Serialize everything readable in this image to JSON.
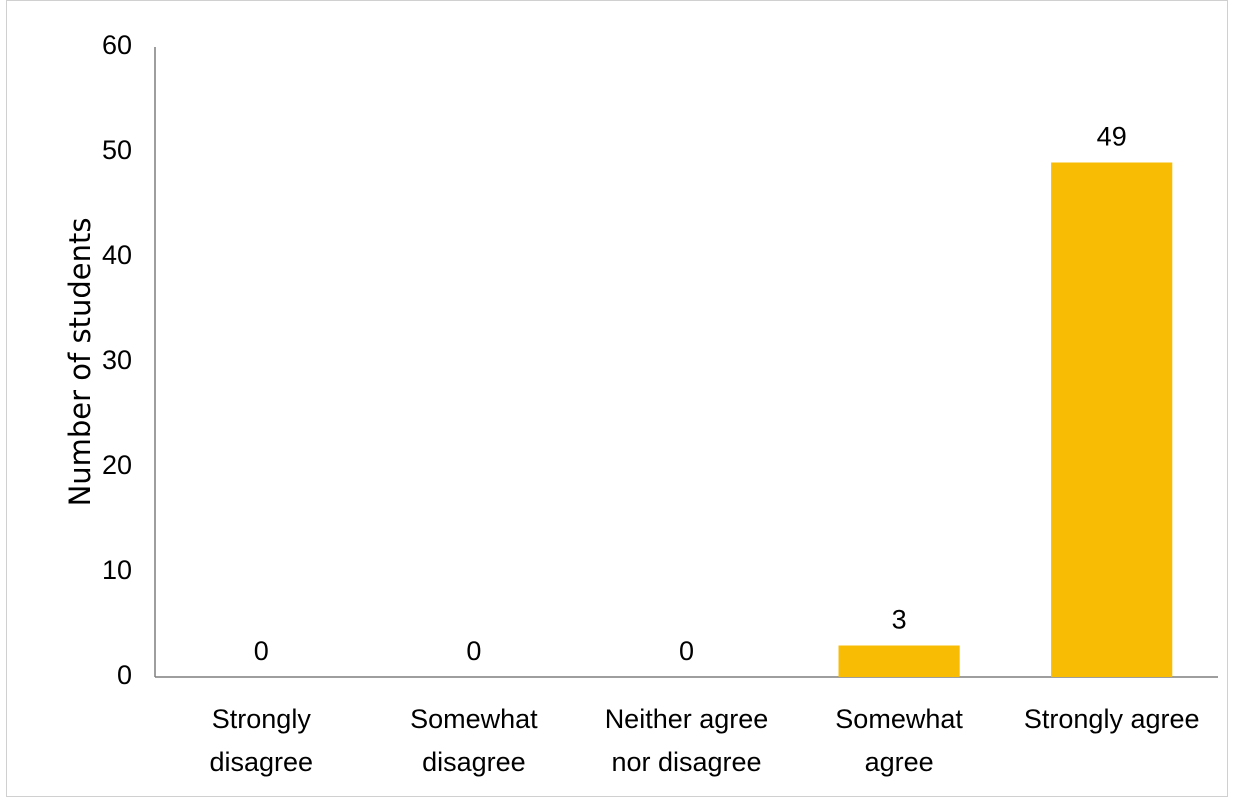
{
  "chart_data": {
    "type": "bar",
    "categories": [
      [
        "Strongly",
        "disagree"
      ],
      [
        "Somewhat",
        "disagree"
      ],
      [
        "Neither agree",
        "nor disagree"
      ],
      [
        "Somewhat",
        "agree"
      ],
      [
        "Strongly agree"
      ]
    ],
    "values": [
      0,
      0,
      0,
      3,
      49
    ],
    "data_labels": [
      "0",
      "0",
      "0",
      "3",
      "49"
    ],
    "title": "",
    "xlabel": "",
    "ylabel": "Number of students",
    "ylim": [
      0,
      60
    ],
    "yticks": [
      "0",
      "10",
      "20",
      "30",
      "40",
      "50",
      "60"
    ],
    "grid": false,
    "legend": "none",
    "bar_color": "#F9BC05"
  }
}
